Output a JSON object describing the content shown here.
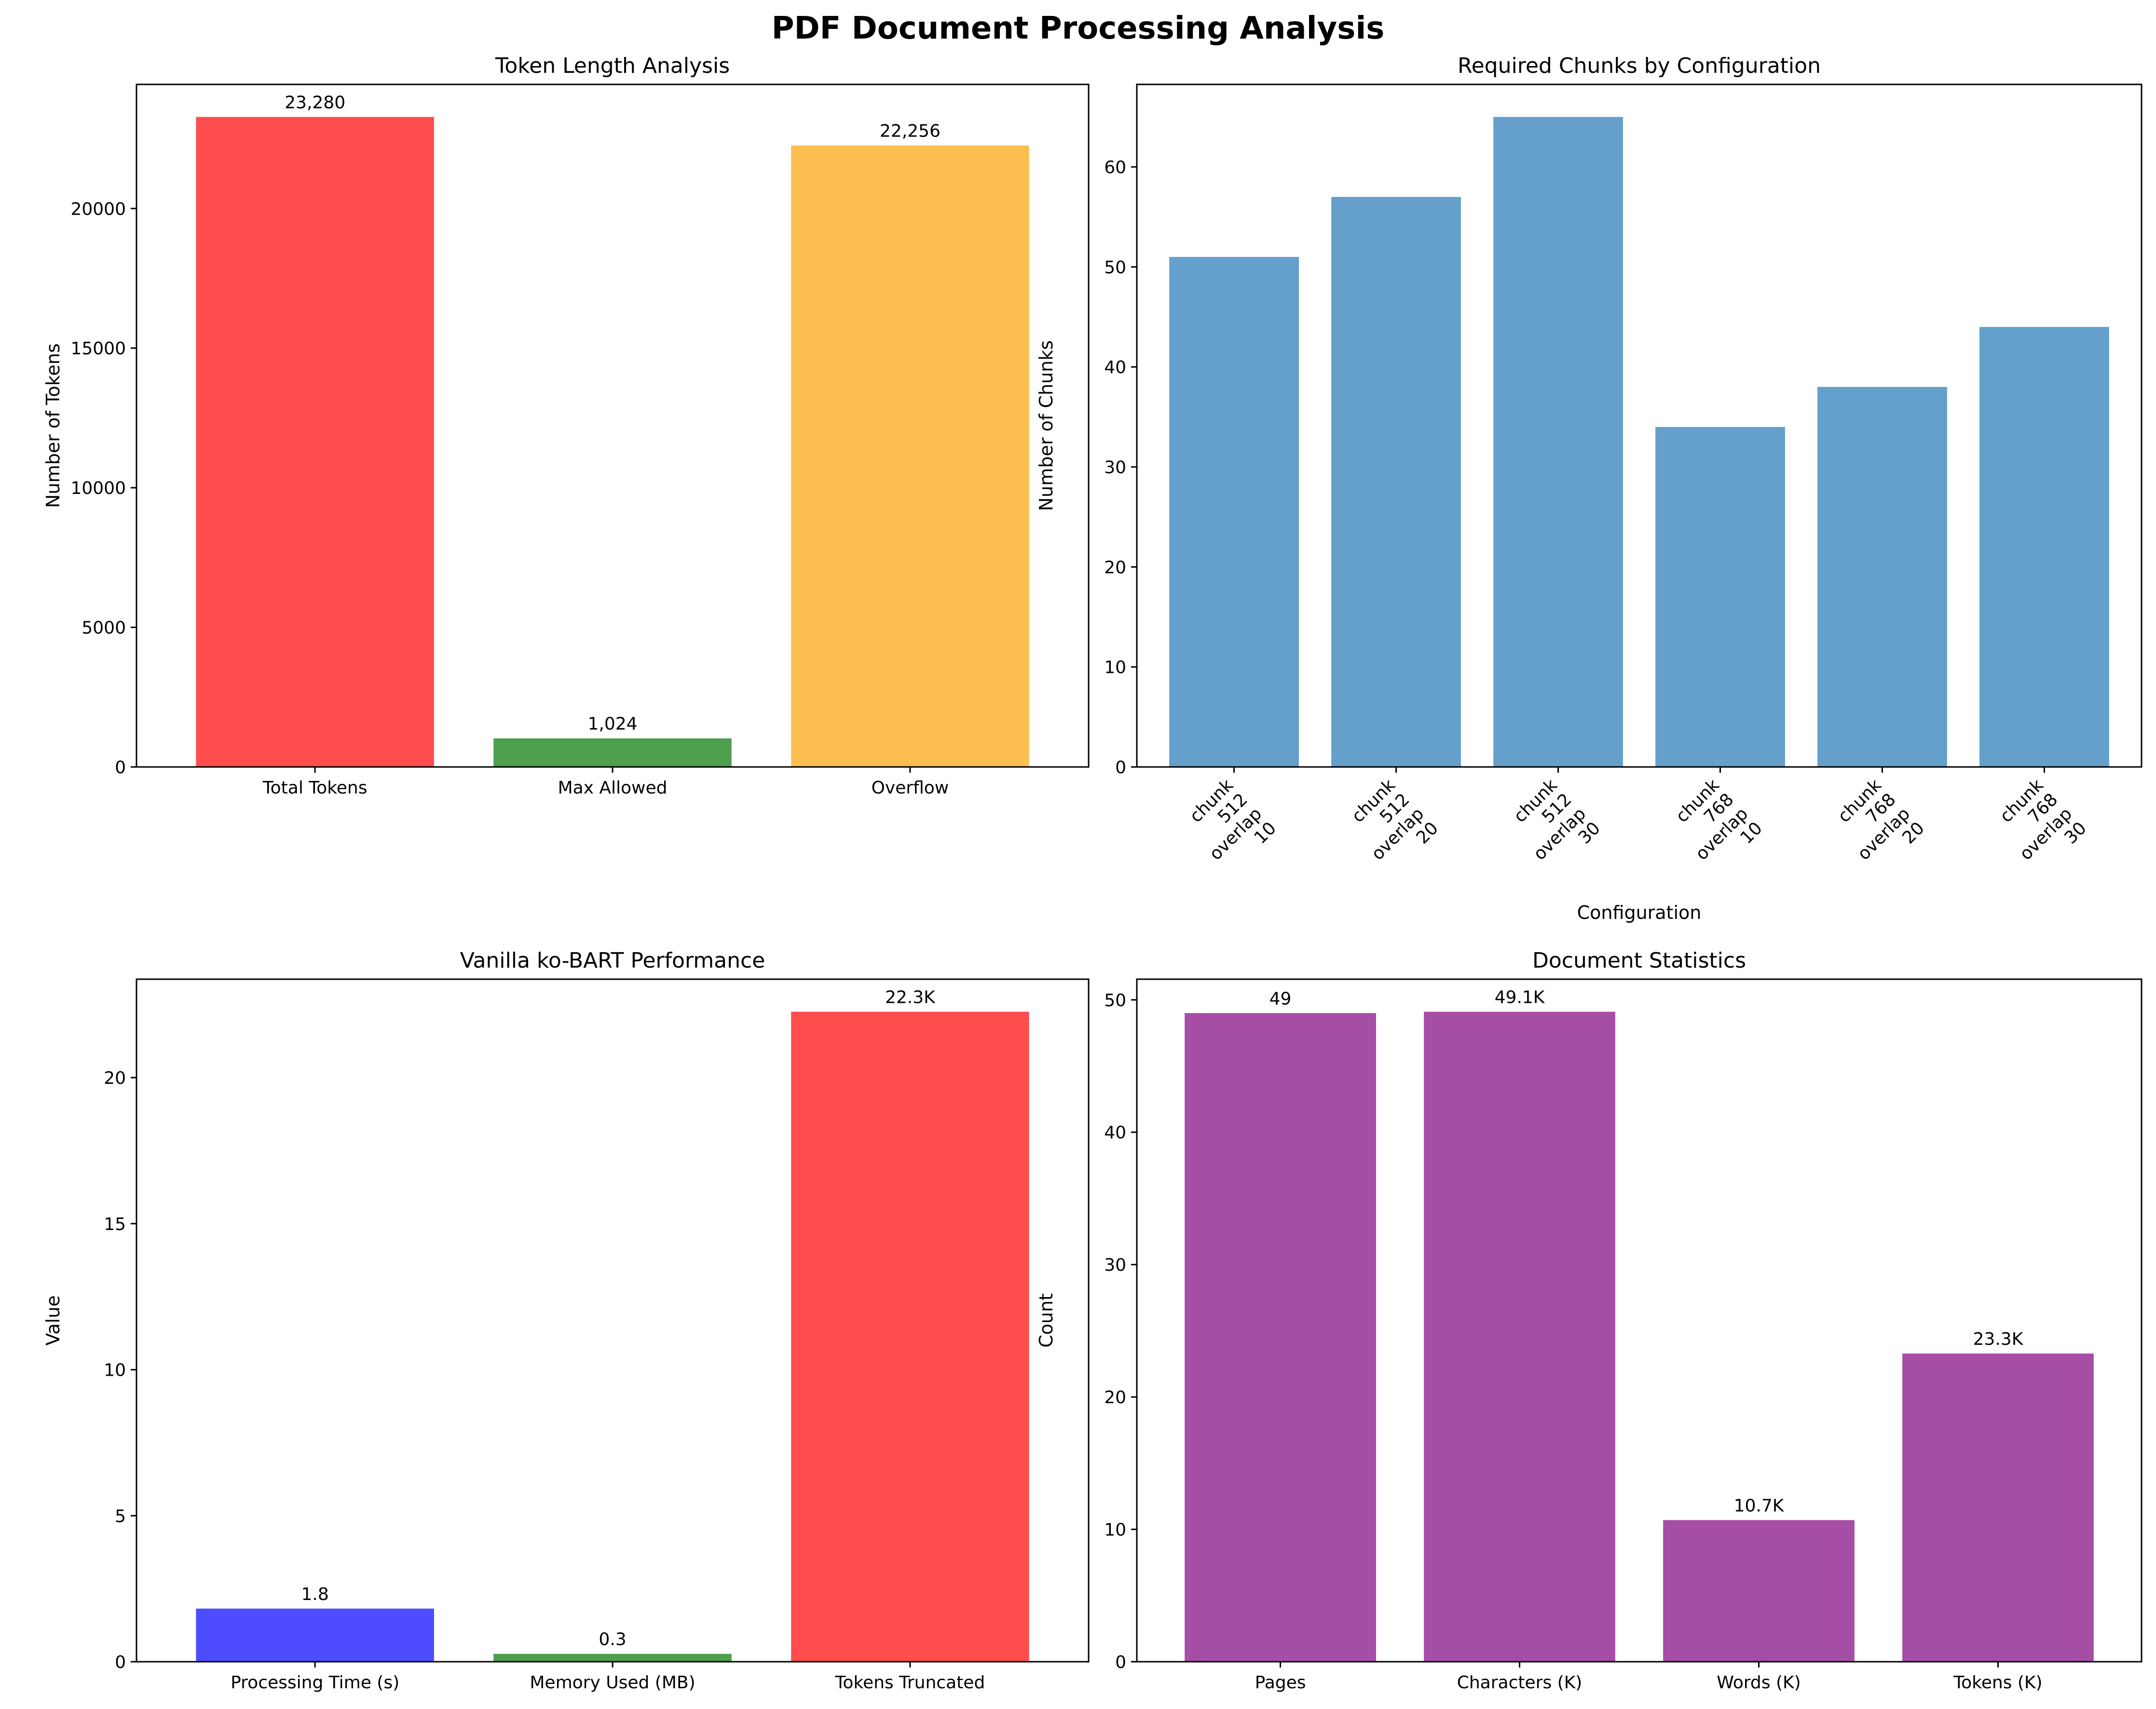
{
  "suptitle": "PDF Document Processing Analysis",
  "chart_data": [
    {
      "type": "bar",
      "title": "Token Length Analysis",
      "xlabel": "",
      "ylabel": "Number of Tokens",
      "categories": [
        "Total Tokens",
        "Max Allowed",
        "Overflow"
      ],
      "values": [
        23280,
        1024,
        22256
      ],
      "data_labels": [
        "23,280",
        "1,024",
        "22,256"
      ],
      "colors": [
        "#ff4d4d",
        "#4d9f4d",
        "#fdbf50"
      ],
      "ylim": [
        0,
        24444
      ],
      "yticks": [
        0,
        5000,
        10000,
        15000,
        20000
      ],
      "ytick_labels": [
        "0",
        "5000",
        "10000",
        "15000",
        "20000"
      ],
      "grid": false
    },
    {
      "type": "bar",
      "title": "Required Chunks by Configuration",
      "xlabel": "Configuration",
      "ylabel": "Number of Chunks",
      "categories": [
        "chunk_512_overlap_10",
        "chunk_512_overlap_20",
        "chunk_512_overlap_30",
        "chunk_768_overlap_10",
        "chunk_768_overlap_20",
        "chunk_768_overlap_30"
      ],
      "category_lines": [
        [
          "chunk",
          "512",
          "overlap",
          "10"
        ],
        [
          "chunk",
          "512",
          "overlap",
          "20"
        ],
        [
          "chunk",
          "512",
          "overlap",
          "30"
        ],
        [
          "chunk",
          "768",
          "overlap",
          "10"
        ],
        [
          "chunk",
          "768",
          "overlap",
          "20"
        ],
        [
          "chunk",
          "768",
          "overlap",
          "30"
        ]
      ],
      "values": [
        51,
        57,
        65,
        34,
        38,
        44
      ],
      "colors": [
        "#64a0cb",
        "#64a0cb",
        "#64a0cb",
        "#64a0cb",
        "#64a0cb",
        "#64a0cb"
      ],
      "ylim": [
        0,
        68.25
      ],
      "yticks": [
        0,
        10,
        20,
        30,
        40,
        50,
        60
      ],
      "ytick_labels": [
        "0",
        "10",
        "20",
        "30",
        "40",
        "50",
        "60"
      ],
      "grid": false
    },
    {
      "type": "bar",
      "title": "Vanilla ko-BART Performance",
      "xlabel": "",
      "ylabel": "Value",
      "categories": [
        "Processing Time (s)",
        "Memory Used (MB)",
        "Tokens Truncated"
      ],
      "values": [
        1.82,
        0.27,
        22.256
      ],
      "data_labels": [
        "1.8",
        "0.3",
        "22.3K"
      ],
      "colors": [
        "#4d4dff",
        "#4d9f4d",
        "#ff4d4d"
      ],
      "ylim": [
        0,
        23.37
      ],
      "yticks": [
        0,
        5,
        10,
        15,
        20
      ],
      "ytick_labels": [
        "0",
        "5",
        "10",
        "15",
        "20"
      ],
      "grid": false
    },
    {
      "type": "bar",
      "title": "Document Statistics",
      "xlabel": "",
      "ylabel": "Count",
      "categories": [
        "Pages",
        "Characters (K)",
        "Words (K)",
        "Tokens (K)"
      ],
      "values": [
        49,
        49.1,
        10.7,
        23.28
      ],
      "data_labels": [
        "49",
        "49.1K",
        "10.7K",
        "23.3K"
      ],
      "colors": [
        "#a64da6",
        "#a64da6",
        "#a64da6",
        "#a64da6"
      ],
      "ylim": [
        0,
        51.56
      ],
      "yticks": [
        0,
        10,
        20,
        30,
        40,
        50
      ],
      "ytick_labels": [
        "0",
        "10",
        "20",
        "30",
        "40",
        "50"
      ],
      "grid": false
    }
  ]
}
